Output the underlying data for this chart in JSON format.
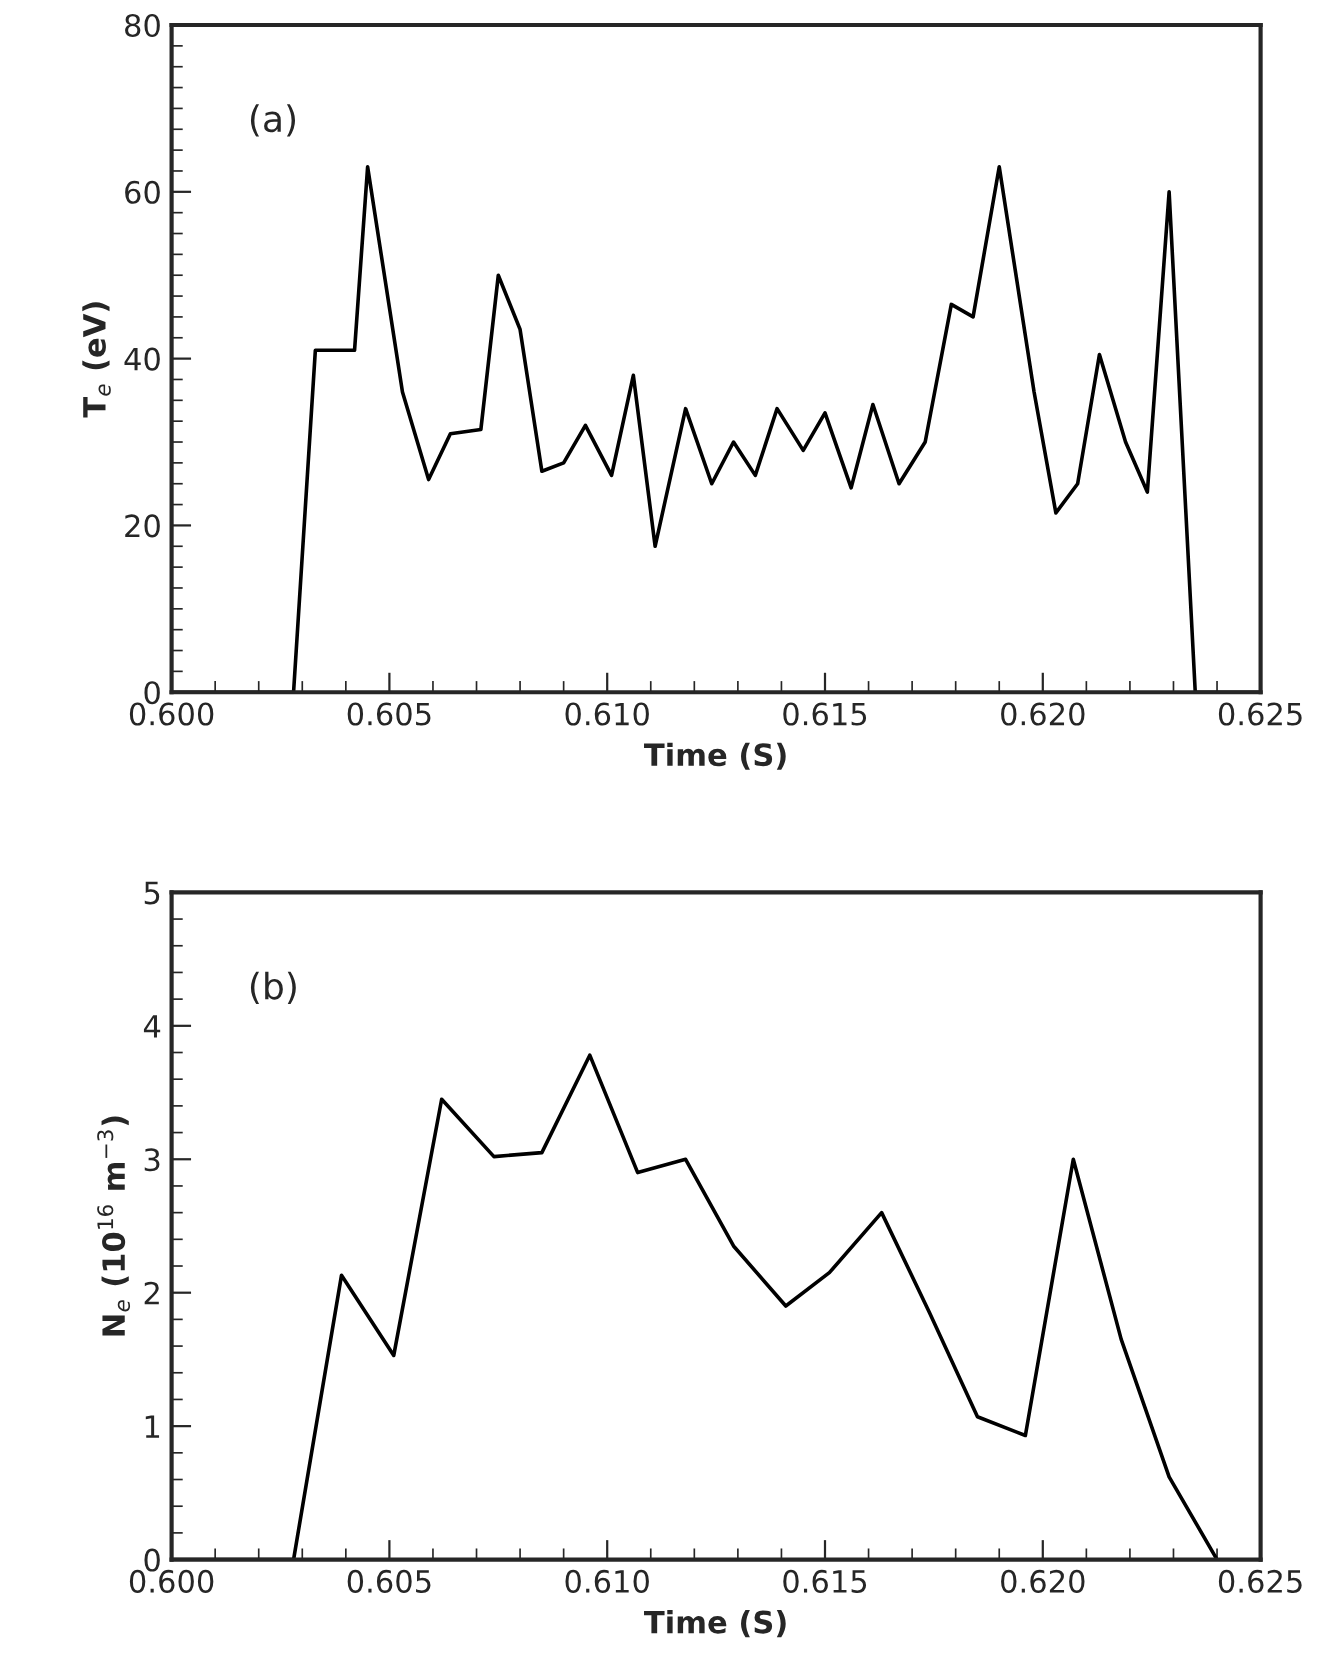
{
  "chart_data": [
    {
      "type": "line",
      "xlabel": "Time (S)",
      "ylabel": "T$_{e}$ (eV)",
      "annotations": [
        "(a)"
      ],
      "grid": false,
      "marker": "none",
      "line_style": "solid",
      "xlim": [
        0.6,
        0.625
      ],
      "xticks": [
        {
          "value": 0.6,
          "label": "0.600"
        },
        {
          "value": 0.605,
          "label": "0.605"
        },
        {
          "value": 0.61,
          "label": "0.610"
        },
        {
          "value": 0.615,
          "label": "0.615"
        },
        {
          "value": 0.62,
          "label": "0.620"
        },
        {
          "value": 0.625,
          "label": "0.625"
        }
      ],
      "ylim": [
        0,
        80
      ],
      "yticks": [
        0,
        20,
        40,
        60,
        80
      ],
      "series": [
        {
          "color": "#000000",
          "x": [
            0.6,
            0.6028,
            0.6033,
            0.6042,
            0.6045,
            0.6053,
            0.6059,
            0.6064,
            0.6071,
            0.6075,
            0.608,
            0.6085,
            0.609,
            0.6095,
            0.6101,
            0.6106,
            0.6111,
            0.6118,
            0.6124,
            0.6129,
            0.6134,
            0.6139,
            0.6145,
            0.615,
            0.6156,
            0.6161,
            0.6167,
            0.6173,
            0.6179,
            0.6184,
            0.619,
            0.6198,
            0.6203,
            0.6208,
            0.6213,
            0.6219,
            0.6224,
            0.6229,
            0.6235,
            0.625
          ],
          "values": [
            0,
            0,
            41,
            41,
            63,
            36,
            25.5,
            31,
            31.5,
            50,
            43.5,
            26.5,
            27.5,
            32,
            26,
            38,
            17.5,
            34,
            25,
            30,
            26,
            34,
            29,
            33.5,
            24.5,
            34.5,
            25,
            30,
            46.5,
            45,
            63,
            36,
            21.5,
            25,
            40.5,
            30,
            24,
            60,
            0,
            0
          ]
        }
      ]
    },
    {
      "type": "line",
      "xlabel": "Time (S)",
      "ylabel": "N$_{e}$ (10$^{16}$ m$^{−3}$)",
      "annotations": [
        "(b)"
      ],
      "grid": false,
      "marker": "none",
      "line_style": "solid",
      "xlim": [
        0.6,
        0.625
      ],
      "xticks": [
        {
          "value": 0.6,
          "label": "0.600"
        },
        {
          "value": 0.605,
          "label": "0.605"
        },
        {
          "value": 0.61,
          "label": "0.610"
        },
        {
          "value": 0.615,
          "label": "0.615"
        },
        {
          "value": 0.62,
          "label": "0.620"
        },
        {
          "value": 0.625,
          "label": "0.625"
        }
      ],
      "ylim": [
        0,
        5
      ],
      "yticks": [
        0,
        1,
        2,
        3,
        4,
        5
      ],
      "series": [
        {
          "color": "#000000",
          "x": [
            0.6,
            0.6028,
            0.6039,
            0.6051,
            0.6062,
            0.6074,
            0.6085,
            0.6096,
            0.6107,
            0.6118,
            0.6129,
            0.6141,
            0.6151,
            0.6163,
            0.6174,
            0.6185,
            0.6196,
            0.6207,
            0.6218,
            0.6229,
            0.624
          ],
          "values": [
            0,
            0,
            2.13,
            1.53,
            3.45,
            3.02,
            3.05,
            3.78,
            2.9,
            3.0,
            2.35,
            1.9,
            2.15,
            2.6,
            1.85,
            1.07,
            0.93,
            3.0,
            1.65,
            0.62,
            0
          ]
        }
      ]
    }
  ]
}
